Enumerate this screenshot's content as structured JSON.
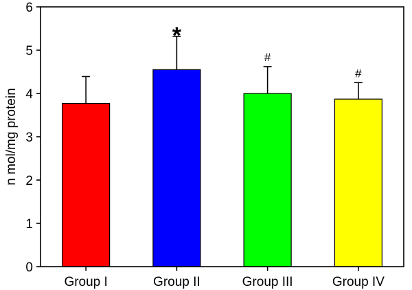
{
  "chart_data": {
    "type": "bar",
    "title": "",
    "xlabel": "",
    "ylabel": "n mol/mg protein",
    "ylim": [
      0,
      6
    ],
    "yticks": [
      0,
      1,
      2,
      3,
      4,
      5,
      6
    ],
    "grid": false,
    "legend": "none",
    "categories": [
      "Group I",
      "Group II",
      "Group III",
      "Group IV"
    ],
    "values": [
      3.77,
      4.55,
      4.0,
      3.87
    ],
    "errors": [
      0.62,
      0.77,
      0.62,
      0.38
    ],
    "colors": [
      "#ff0000",
      "#0000ff",
      "#00ff00",
      "#ffff00"
    ],
    "annotations": [
      "",
      "*",
      "#",
      "#"
    ]
  }
}
